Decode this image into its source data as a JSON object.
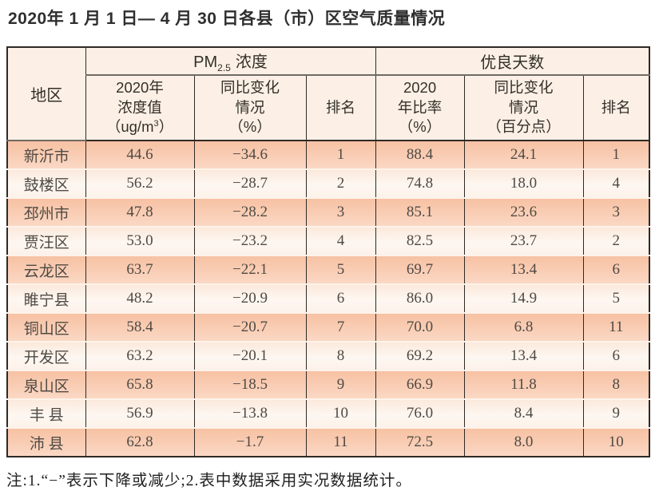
{
  "page": {
    "title": "2020年 1 月 1 日— 4 月 30 日各县（市）区空气质量情况",
    "footnote": "注:1.“−”表示下降或减少;2.表中数据采用实况数据统计。"
  },
  "colors": {
    "row_salmon": "#f8c2a4",
    "row_light": "#fdf2e9",
    "header_bg": "#fcf0e6",
    "grid_line": "#2e2a26",
    "body_text": "#4f4a44"
  },
  "table": {
    "header": {
      "region": "地区",
      "pm_group": {
        "prefix": "PM",
        "sub": "2.5",
        "suffix": "浓度"
      },
      "good_group": "优良天数",
      "pm_value": {
        "l1": "2020年",
        "l2": "浓度值",
        "l3_pre": "（ug/m",
        "l3_sup": "3",
        "l3_post": "）"
      },
      "pm_change": {
        "l1": "同比变化",
        "l2": "情况",
        "l3": "（%）"
      },
      "pm_rank": "排名",
      "good_ratio": {
        "l1": "2020",
        "l2": "年比率",
        "l3": "（%）"
      },
      "good_change": {
        "l1": "同比变化",
        "l2": "情况",
        "l3": "（百分点）"
      },
      "good_rank": "排名"
    },
    "rows": [
      {
        "region": "新沂市",
        "pm_value": "44.6",
        "pm_change": "−34.6",
        "pm_rank": "1",
        "good_ratio": "88.4",
        "good_change": "24.1",
        "good_rank": "1"
      },
      {
        "region": "鼓楼区",
        "pm_value": "56.2",
        "pm_change": "−28.7",
        "pm_rank": "2",
        "good_ratio": "74.8",
        "good_change": "18.0",
        "good_rank": "4"
      },
      {
        "region": "邳州市",
        "pm_value": "47.8",
        "pm_change": "−28.2",
        "pm_rank": "3",
        "good_ratio": "85.1",
        "good_change": "23.6",
        "good_rank": "3"
      },
      {
        "region": "贾汪区",
        "pm_value": "53.0",
        "pm_change": "−23.2",
        "pm_rank": "4",
        "good_ratio": "82.5",
        "good_change": "23.7",
        "good_rank": "2"
      },
      {
        "region": "云龙区",
        "pm_value": "63.7",
        "pm_change": "−22.1",
        "pm_rank": "5",
        "good_ratio": "69.7",
        "good_change": "13.4",
        "good_rank": "6"
      },
      {
        "region": "睢宁县",
        "pm_value": "48.2",
        "pm_change": "−20.9",
        "pm_rank": "6",
        "good_ratio": "86.0",
        "good_change": "14.9",
        "good_rank": "5"
      },
      {
        "region": "铜山区",
        "pm_value": "58.4",
        "pm_change": "−20.7",
        "pm_rank": "7",
        "good_ratio": "70.0",
        "good_change": "6.8",
        "good_rank": "11"
      },
      {
        "region": "开发区",
        "pm_value": "63.2",
        "pm_change": "−20.1",
        "pm_rank": "8",
        "good_ratio": "69.2",
        "good_change": "13.4",
        "good_rank": "6"
      },
      {
        "region": "泉山区",
        "pm_value": "65.8",
        "pm_change": "−18.5",
        "pm_rank": "9",
        "good_ratio": "66.9",
        "good_change": "11.8",
        "good_rank": "8"
      },
      {
        "region": "丰 县",
        "pm_value": "56.9",
        "pm_change": "−13.8",
        "pm_rank": "10",
        "good_ratio": "76.0",
        "good_change": "8.4",
        "good_rank": "9"
      },
      {
        "region": "沛 县",
        "pm_value": "62.8",
        "pm_change": "−1.7",
        "pm_rank": "11",
        "good_ratio": "72.5",
        "good_change": "8.0",
        "good_rank": "10"
      }
    ]
  },
  "chart_data": {
    "type": "table",
    "title": "2020年 1 月 1 日— 4 月 30 日各县（市）区空气质量情况",
    "columns": [
      "地区",
      "PM2.5浓度 2020年浓度值（ug/m3）",
      "PM2.5浓度 同比变化情况（%）",
      "PM2.5浓度 排名",
      "优良天数 2020年比率（%）",
      "优良天数 同比变化情况（百分点）",
      "优良天数 排名"
    ],
    "rows": [
      [
        "新沂市",
        44.6,
        -34.6,
        1,
        88.4,
        24.1,
        1
      ],
      [
        "鼓楼区",
        56.2,
        -28.7,
        2,
        74.8,
        18.0,
        4
      ],
      [
        "邳州市",
        47.8,
        -28.2,
        3,
        85.1,
        23.6,
        3
      ],
      [
        "贾汪区",
        53.0,
        -23.2,
        4,
        82.5,
        23.7,
        2
      ],
      [
        "云龙区",
        63.7,
        -22.1,
        5,
        69.7,
        13.4,
        6
      ],
      [
        "睢宁县",
        48.2,
        -20.9,
        6,
        86.0,
        14.9,
        5
      ],
      [
        "铜山区",
        58.4,
        -20.7,
        7,
        70.0,
        6.8,
        11
      ],
      [
        "开发区",
        63.2,
        -20.1,
        8,
        69.2,
        13.4,
        6
      ],
      [
        "泉山区",
        65.8,
        -18.5,
        9,
        66.9,
        11.8,
        8
      ],
      [
        "丰 县",
        56.9,
        -13.8,
        10,
        76.0,
        8.4,
        9
      ],
      [
        "沛 县",
        62.8,
        -1.7,
        11,
        72.5,
        8.0,
        10
      ]
    ],
    "footnote": "注:1.“−”表示下降或减少;2.表中数据采用实况数据统计。"
  }
}
